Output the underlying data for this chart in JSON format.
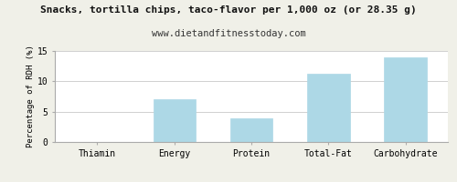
{
  "title": "Snacks, tortilla chips, taco-flavor per 1,000 oz (or 28.35 g)",
  "subtitle": "www.dietandfitnesstoday.com",
  "categories": [
    "Thiamin",
    "Energy",
    "Protein",
    "Total-Fat",
    "Carbohydrate"
  ],
  "values": [
    0,
    7.1,
    3.9,
    11.2,
    13.9
  ],
  "bar_color": "#add8e6",
  "bar_edge_color": "#add8e6",
  "ylabel": "Percentage of RDH (%)",
  "ylim": [
    0,
    15
  ],
  "yticks": [
    0,
    5,
    10,
    15
  ],
  "background_color": "#f0f0e8",
  "plot_bg_color": "#ffffff",
  "title_fontsize": 8.0,
  "subtitle_fontsize": 7.5,
  "ylabel_fontsize": 6.5,
  "tick_fontsize": 7.0,
  "grid_color": "#d0d0d0"
}
